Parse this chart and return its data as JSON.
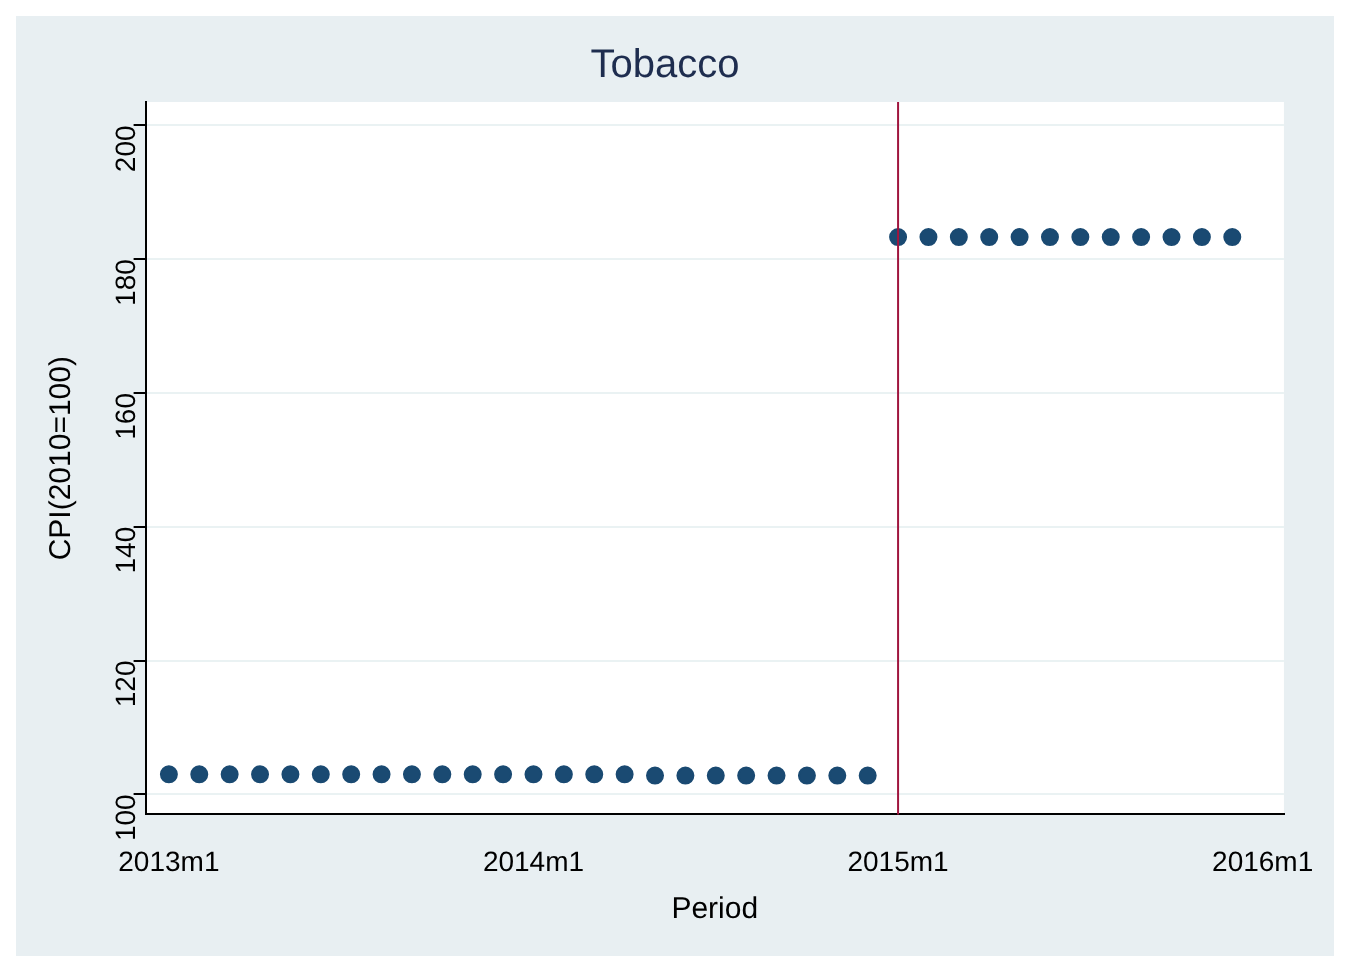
{
  "chart_data": {
    "type": "scatter",
    "title": "Tobacco",
    "xlabel": "Period",
    "ylabel": "CPI(2010=100)",
    "x": [
      "2013-01",
      "2013-02",
      "2013-03",
      "2013-04",
      "2013-05",
      "2013-06",
      "2013-07",
      "2013-08",
      "2013-09",
      "2013-10",
      "2013-11",
      "2013-12",
      "2014-01",
      "2014-02",
      "2014-03",
      "2014-04",
      "2014-05",
      "2014-06",
      "2014-07",
      "2014-08",
      "2014-09",
      "2014-10",
      "2014-11",
      "2014-12",
      "2015-01",
      "2015-02",
      "2015-03",
      "2015-04",
      "2015-05",
      "2015-06",
      "2015-07",
      "2015-08",
      "2015-09",
      "2015-10",
      "2015-11",
      "2015-12"
    ],
    "series": [
      {
        "color": "#1a4a72",
        "values": [
          103,
          103,
          103,
          103,
          103,
          103,
          103,
          103,
          103,
          103,
          103,
          103,
          103,
          103,
          103,
          103,
          102.8,
          102.8,
          102.8,
          102.8,
          102.8,
          102.8,
          102.8,
          102.8,
          183.3,
          183.3,
          183.3,
          183.3,
          183.3,
          183.3,
          183.3,
          183.3,
          183.3,
          183.3,
          183.3,
          183.3
        ]
      }
    ],
    "xlim": [
      "2012-12-08",
      "2016-01-22"
    ],
    "xticks": [
      {
        "value": "2013-01",
        "label": "2013m1"
      },
      {
        "value": "2014-01",
        "label": "2014m1"
      },
      {
        "value": "2015-01",
        "label": "2015m1"
      },
      {
        "value": "2016-01",
        "label": "2016m1"
      }
    ],
    "ylim": [
      97,
      203.5
    ],
    "yticks": [
      100,
      120,
      140,
      160,
      180,
      200
    ],
    "ref_lines": [
      {
        "axis": "x",
        "value": "2015-01",
        "color": "#a0153e"
      }
    ],
    "grid": "y",
    "marker": "circle",
    "legend": false
  }
}
